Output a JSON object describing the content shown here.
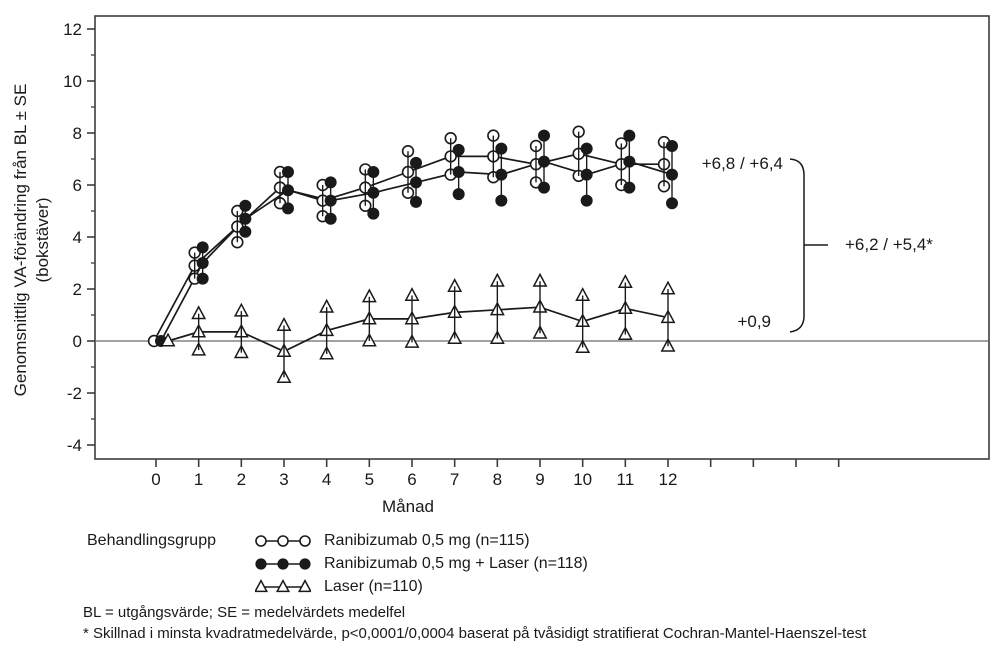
{
  "colors": {
    "ink": "#1a1a1a",
    "frame": "#3d3d3d",
    "zero_line": "#6b6b6b",
    "background": "#ffffff"
  },
  "chart_data": {
    "type": "line",
    "title": "",
    "xlabel": "Månad",
    "ylabel_line1": "Genomsnittlig VA-förändring från BL ± SE",
    "ylabel_line2": "(bokstäver)",
    "x": [
      0,
      1,
      2,
      3,
      4,
      5,
      6,
      7,
      8,
      9,
      10,
      11,
      12
    ],
    "xlim": [
      -1.4,
      19.5
    ],
    "ylim": [
      -4.5,
      12.5
    ],
    "x_ticks_labeled": [
      0,
      1,
      2,
      3,
      4,
      5,
      6,
      7,
      8,
      9,
      10,
      11,
      12
    ],
    "x_ticks_unlabeled": [
      13,
      14,
      15,
      16
    ],
    "y_ticks_major": [
      12,
      10,
      8,
      6,
      4,
      2,
      0,
      -2,
      -4
    ],
    "y_ticks_minor": [
      11,
      9,
      7,
      5,
      3,
      1,
      -1,
      -3
    ],
    "zero_reference_line": 0,
    "grid": false,
    "error_bars": "±SE with series marker at caps",
    "series": [
      {
        "name": "Ranibizumab 0,5 mg (n=115)",
        "marker": "open-circle",
        "means": [
          0,
          2.9,
          4.4,
          5.9,
          5.4,
          5.9,
          6.5,
          7.1,
          7.1,
          6.8,
          7.2,
          6.8,
          6.8
        ],
        "se": [
          0,
          0.5,
          0.6,
          0.6,
          0.6,
          0.7,
          0.8,
          0.7,
          0.8,
          0.7,
          0.85,
          0.8,
          0.85
        ]
      },
      {
        "name": "Ranibizumab 0,5 mg + Laser (n=118)",
        "marker": "filled-circle",
        "means": [
          0,
          3.0,
          4.7,
          5.8,
          5.4,
          5.7,
          6.1,
          6.5,
          6.4,
          6.9,
          6.4,
          6.9,
          6.4
        ],
        "se": [
          0,
          0.6,
          0.5,
          0.7,
          0.7,
          0.8,
          0.75,
          0.85,
          1.0,
          1.0,
          1.0,
          1.0,
          1.1
        ]
      },
      {
        "name": "Laser (n=110)",
        "marker": "open-triangle",
        "means": [
          0,
          0.35,
          0.35,
          -0.4,
          0.4,
          0.85,
          0.85,
          1.1,
          1.2,
          1.3,
          0.75,
          1.25,
          0.9
        ],
        "se": [
          0,
          0.7,
          0.8,
          1.0,
          0.9,
          0.85,
          0.9,
          1.0,
          1.1,
          1.0,
          1.0,
          1.0,
          1.1
        ]
      }
    ],
    "annotations": {
      "top": "+6,8 / +6,4",
      "middle": "+6,2 / +5,4*",
      "bottom": "+0,9"
    },
    "legend_position": "bottom"
  },
  "legend": {
    "group_label": "Behandlingsgrupp",
    "items": [
      {
        "label": "Ranibizumab 0,5 mg (n=115)",
        "marker": "open-circle"
      },
      {
        "label": "Ranibizumab 0,5 mg + Laser (n=118)",
        "marker": "filled-circle"
      },
      {
        "label": "Laser (n=110)",
        "marker": "open-triangle"
      }
    ]
  },
  "footnotes": [
    "BL = utgångsvärde; SE = medelvärdets medelfel",
    "* Skillnad i minsta kvadratmedelvärde, p<0,0001/0,0004 baserat på tvåsidigt stratifierat Cochran-Mantel-Haenszel-test"
  ]
}
